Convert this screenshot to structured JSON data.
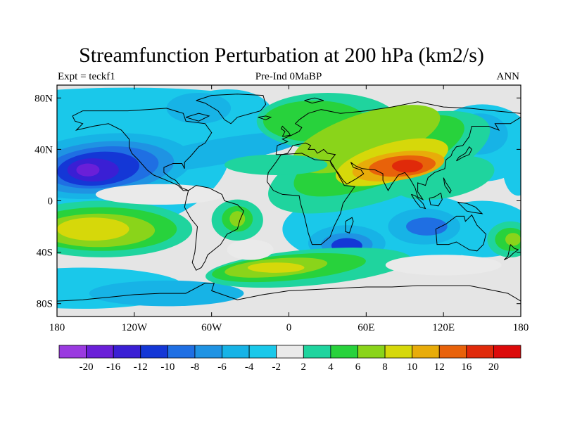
{
  "title": "Streamfunction Perturbation at 200 hPa (km2/s)",
  "subtitle_left": "Expt = teckf1",
  "subtitle_center": "Pre-Ind 0MaBP",
  "subtitle_right": "ANN",
  "map": {
    "projection": "cylindrical-equidistant",
    "lon_range": [
      -180,
      180
    ],
    "lat_range": [
      -90,
      90
    ],
    "land_outline_color": "#000000",
    "missing_color": "#e5e5e5"
  },
  "axes": {
    "x_ticks": [
      {
        "value": -180,
        "label": "180"
      },
      {
        "value": -120,
        "label": "120W"
      },
      {
        "value": -60,
        "label": "60W"
      },
      {
        "value": 0,
        "label": "0"
      },
      {
        "value": 60,
        "label": "60E"
      },
      {
        "value": 120,
        "label": "120E"
      },
      {
        "value": 180,
        "label": "180"
      }
    ],
    "y_ticks": [
      {
        "value": 80,
        "label": "80N"
      },
      {
        "value": 40,
        "label": "40N"
      },
      {
        "value": 0,
        "label": "0"
      },
      {
        "value": -40,
        "label": "40S"
      },
      {
        "value": -80,
        "label": "80S"
      }
    ]
  },
  "colorbar": {
    "levels": [
      "-20",
      "-16",
      "-12",
      "-10",
      "-8",
      "-6",
      "-4",
      "-2",
      "2",
      "4",
      "6",
      "8",
      "10",
      "12",
      "16",
      "20"
    ],
    "colors": [
      "#9a3ae0",
      "#6a1fd8",
      "#3a1fd4",
      "#1437d6",
      "#1f6fe3",
      "#1f93e3",
      "#17b3e6",
      "#1ac8ea",
      "#eaeaea",
      "#1fd49e",
      "#28d23c",
      "#8ad41a",
      "#d6d80a",
      "#e8ac0a",
      "#e8620a",
      "#e02a0a",
      "#dc0a0a"
    ]
  },
  "chart_data": {
    "type": "heatmap",
    "title": "Streamfunction Perturbation at 200 hPa (km2/s)",
    "units": "km2/s",
    "features": [
      {
        "lon": -145,
        "lat": 25,
        "value": -18,
        "type": "minimum"
      },
      {
        "lon": -150,
        "lat": -22,
        "value": 9,
        "type": "maximum"
      },
      {
        "lon": -40,
        "lat": -15,
        "value": 6,
        "type": "maximum"
      },
      {
        "lon": -10,
        "lat": -52,
        "value": 7,
        "type": "maximum"
      },
      {
        "lon": 15,
        "lat": 65,
        "value": 6,
        "type": "maximum"
      },
      {
        "lon": 90,
        "lat": 25,
        "value": 14,
        "type": "maximum"
      },
      {
        "lon": 40,
        "lat": -35,
        "value": -12,
        "type": "minimum"
      },
      {
        "lon": 105,
        "lat": -20,
        "value": -10,
        "type": "minimum"
      },
      {
        "lon": 150,
        "lat": 55,
        "value": -6,
        "type": "minimum"
      },
      {
        "lon": 170,
        "lat": -30,
        "value": 8,
        "type": "maximum"
      },
      {
        "lon": -120,
        "lat": -65,
        "value": -4,
        "type": "minimum"
      }
    ]
  }
}
